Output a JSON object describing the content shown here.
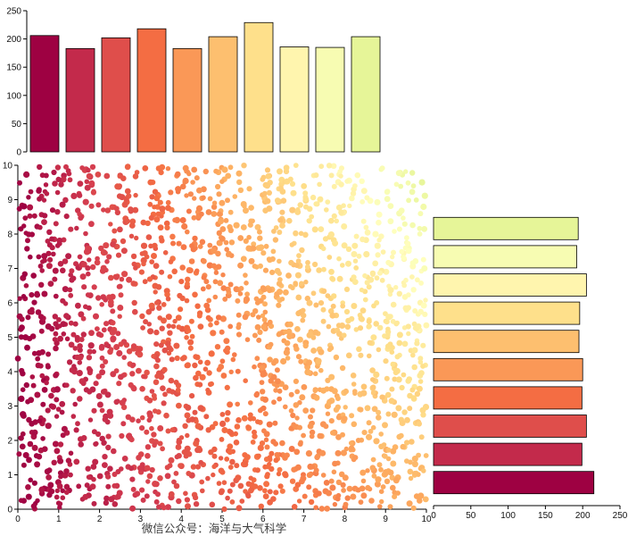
{
  "caption": "微信公众号：海洋与大气科学",
  "colors": {
    "background": "#ffffff",
    "axis": "#000000",
    "bar_edge": "#000000",
    "caption_text": "#3d3d3d"
  },
  "chart_data": [
    {
      "id": "top-histogram",
      "type": "bar",
      "orientation": "vertical",
      "title": "",
      "xlabel": "",
      "ylabel": "",
      "categories": [
        "0-1",
        "1-2",
        "2-3",
        "3-4",
        "4-5",
        "5-6",
        "6-7",
        "7-8",
        "8-9",
        "9-10"
      ],
      "values": [
        206,
        183,
        202,
        218,
        183,
        204,
        229,
        186,
        185,
        204
      ],
      "ylim": [
        0,
        250
      ],
      "yticks": [
        0,
        50,
        100,
        150,
        200,
        250
      ],
      "grid": false,
      "legend": "none",
      "color_rule": "bars colored left-to-right along colormap from dark red to pale yellow-green"
    },
    {
      "id": "joint-scatter",
      "type": "scatter",
      "title": "",
      "xlabel": "",
      "ylabel": "",
      "xlim": [
        0,
        10
      ],
      "ylim": [
        0,
        10
      ],
      "xticks": [
        0,
        1,
        2,
        3,
        4,
        5,
        6,
        7,
        8,
        9,
        10
      ],
      "yticks": [
        0,
        1,
        2,
        3,
        4,
        5,
        6,
        7,
        8,
        9,
        10
      ],
      "n_points": 2000,
      "point_distribution": "uniform random over the full x-y plane",
      "marker": "filled circle, no edge",
      "color_rule": "points shade from dark crimson at low x toward pale yellow-green at high x and high y (lightest at top-right corner)",
      "colormap": [
        "#9e0142",
        "#d53e4f",
        "#f46d43",
        "#fdae61",
        "#fee08b",
        "#ffffbf",
        "#e6f598"
      ],
      "grid": false
    },
    {
      "id": "right-histogram",
      "type": "bar",
      "orientation": "horizontal",
      "title": "",
      "xlabel": "",
      "ylabel": "",
      "categories_bottom_to_top": [
        "0-1",
        "1-2",
        "2-3",
        "3-4",
        "4-5",
        "5-6",
        "6-7",
        "7-8",
        "8-9",
        "9-10"
      ],
      "values_bottom_to_top": [
        215,
        199,
        205,
        199,
        200,
        195,
        196,
        205,
        192,
        194
      ],
      "xlim": [
        0,
        250
      ],
      "xticks": [
        0,
        50,
        100,
        150,
        200,
        250
      ],
      "grid": false,
      "legend": "none",
      "color_rule": "bars colored bottom-to-top along colormap from dark red to pale yellow-green"
    }
  ]
}
